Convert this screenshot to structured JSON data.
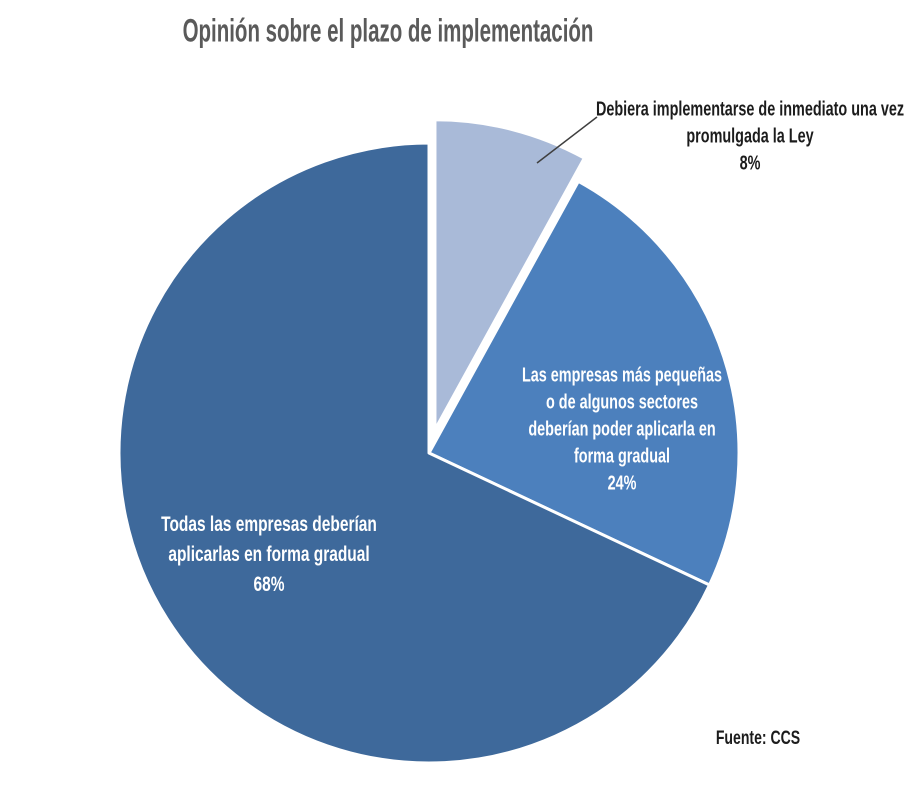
{
  "title": "Opinión sobre el plazo de implementación",
  "source": "Fuente: CCS",
  "colors": {
    "background": "#ffffff",
    "title_text": "#5a5a5a",
    "leader_line": "#3f3f3f",
    "slice_border": "#ffffff"
  },
  "chart_data": {
    "type": "pie",
    "title": "Opinión sobre el plazo de implementación",
    "source": "Fuente: CCS",
    "direction": "clockwise",
    "start_angle_deg": 0,
    "legend": "none",
    "slices": [
      {
        "label": "Debiera implementarse de inmediato una vez promulgada la Ley",
        "label_lines": [
          "Debiera implementarse de inmediato una vez",
          "promulgada la Ley"
        ],
        "pct_label": "8%",
        "value": 8,
        "color": "#A9BAD8",
        "exploded": true,
        "label_placement": "outside",
        "label_color": "#1c1c1c"
      },
      {
        "label": "Las empresas más pequeñas o de algunos sectores deberían poder aplicarla en forma gradual",
        "label_lines": [
          "Las empresas más pequeñas",
          "o de algunos sectores",
          "deberían poder aplicarla en",
          "forma gradual"
        ],
        "pct_label": "24%",
        "value": 24,
        "color": "#4C80BD",
        "exploded": false,
        "label_placement": "inside",
        "label_color": "#ffffff"
      },
      {
        "label": "Todas las empresas deberían aplicarlas en forma gradual",
        "label_lines": [
          "Todas las empresas deberían",
          "aplicarlas en forma gradual"
        ],
        "pct_label": "68%",
        "value": 68,
        "color": "#3E699B",
        "exploded": false,
        "label_placement": "inside",
        "label_color": "#ffffff"
      }
    ]
  }
}
